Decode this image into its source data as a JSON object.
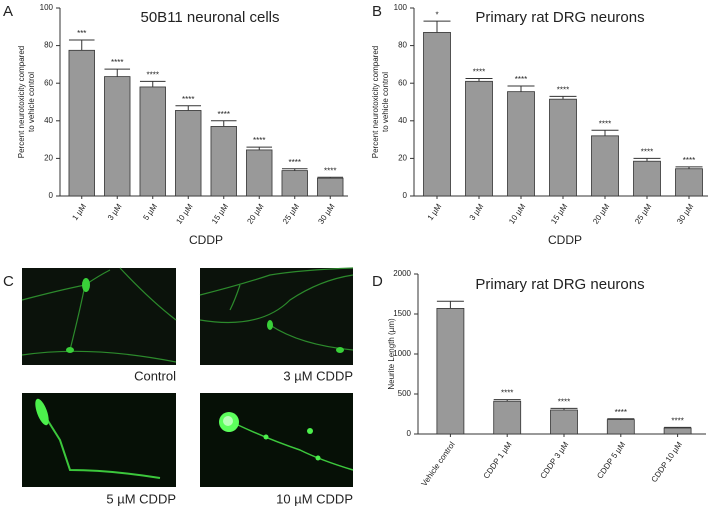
{
  "chart_data": [
    {
      "type": "bar",
      "panel": "A",
      "title": "50B11 neuronal cells",
      "xlabel": "CDDP",
      "ylabel": [
        "Percent neurotoxicity compared",
        "to vehicle control"
      ],
      "categories": [
        "1 µM",
        "3 µM",
        "5 µM",
        "10 µM",
        "15 µM",
        "20 µM",
        "25 µM",
        "30 µM"
      ],
      "values": [
        77.5,
        63.5,
        58,
        45.5,
        37,
        24.5,
        13.5,
        9.5
      ],
      "errors": [
        5.5,
        4,
        3,
        2.5,
        3,
        1.5,
        1,
        0.5
      ],
      "annotations": [
        "***",
        "****",
        "****",
        "****",
        "****",
        "****",
        "****",
        "****"
      ],
      "color": "#999999",
      "ylim": [
        0,
        100
      ],
      "yticks": [
        0,
        20,
        40,
        60,
        80,
        100
      ]
    },
    {
      "type": "bar",
      "panel": "B",
      "title": "Primary rat DRG neurons",
      "xlabel": "CDDP",
      "ylabel": [
        "Percent neurotoxicity compared",
        "to vehicle control"
      ],
      "categories": [
        "1 µM",
        "3 µM",
        "10 µM",
        "15 µM",
        "20 µM",
        "25 µM",
        "30 µM"
      ],
      "values": [
        87,
        61,
        55.5,
        51.5,
        32,
        18.5,
        14.5
      ],
      "errors": [
        6,
        1.5,
        3,
        1.5,
        3,
        1.5,
        1
      ],
      "annotations": [
        "*",
        "****",
        "****",
        "****",
        "****",
        "****",
        "****"
      ],
      "color": "#999999",
      "ylim": [
        0,
        100
      ],
      "yticks": [
        0,
        20,
        40,
        60,
        80,
        100
      ]
    },
    {
      "type": "bar",
      "panel": "D",
      "title": "Primary rat DRG neurons",
      "ylabel": [
        "Neurite Length (µm)"
      ],
      "categories": [
        "Vehicle control",
        "CDDP 1 µM",
        "CDDP 3 µM",
        "CDDP 5 µM",
        "CDDP 10 µM"
      ],
      "values": [
        1570,
        410,
        300,
        180,
        75
      ],
      "errors": [
        90,
        20,
        20,
        10,
        8
      ],
      "annotations": [
        null,
        "****",
        "****",
        "****",
        "****"
      ],
      "color": "#999999",
      "ylim": [
        0,
        2000
      ],
      "yticks": [
        0,
        500,
        1000,
        1500,
        2000
      ]
    }
  ],
  "images": {
    "panel": "C",
    "captions": [
      "Control",
      "3 µM CDDP",
      "5 µM CDDP",
      "10 µM CDDP"
    ]
  }
}
